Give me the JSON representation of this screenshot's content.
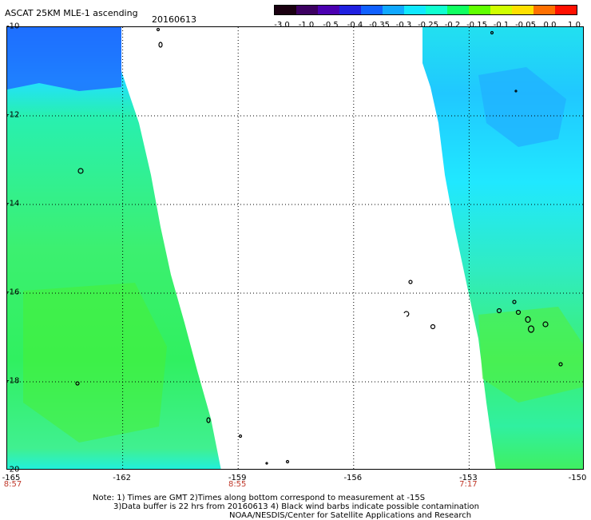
{
  "header": {
    "title": "ASCAT 25KM MLE-1 ascending",
    "date": "20160613"
  },
  "colorbar": {
    "labels": [
      "-3.0",
      "-1.0",
      "-0.5",
      "-0.4",
      "-0.35",
      "-0.3",
      "-0.25",
      "-0.2",
      "-0.15",
      "-0.1",
      "-0.05",
      "0.0",
      "1.0"
    ],
    "colors": [
      "#1a0010",
      "#3c0060",
      "#4b00b0",
      "#2020e0",
      "#1060ff",
      "#10a8ff",
      "#10e8ff",
      "#10ffd0",
      "#10ff60",
      "#60ff00",
      "#d0ff00",
      "#ffe000",
      "#ff7000",
      "#ff1000"
    ]
  },
  "map": {
    "lat_labels": [
      "-10",
      "-12",
      "-14",
      "-16",
      "-18",
      "-20"
    ],
    "lon_labels": [
      "-165",
      "-162",
      "-159",
      "-156",
      "-153",
      "-150"
    ],
    "time_labels": [
      {
        "lon": "-165",
        "time": "8:57"
      },
      {
        "lon": "-159",
        "time": "8:55"
      },
      {
        "lon": "-153",
        "time": "7:17"
      }
    ]
  },
  "notes": [
    "Note: 1) Times are GMT 2)Times along bottom correspond to measurement at -15S",
    "3)Data buffer is 22 hrs from 20160613 4) Black wind barbs indicate possible contamination",
    "NOAA/NESDIS/Center for Satellite Applications and Research"
  ]
}
